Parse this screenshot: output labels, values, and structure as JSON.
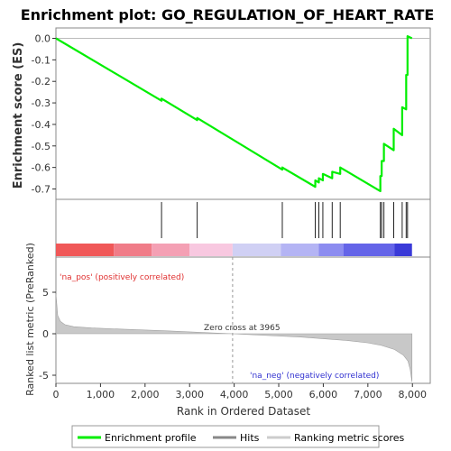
{
  "chart_data": {
    "type": "line",
    "title": "Enrichment plot: GO_REGULATION_OF_HEART_RATE",
    "es_panel": {
      "ylabel": "Enrichment score (ES)",
      "ylim": [
        -0.75,
        0.03
      ],
      "y_ticks": [
        0.0,
        -0.1,
        -0.2,
        -0.3,
        -0.4,
        -0.5,
        -0.6,
        -0.7
      ],
      "y_tick_labels": [
        "0.0",
        "-0.1",
        "-0.2",
        "-0.3",
        "-0.4",
        "-0.5",
        "-0.6",
        "-0.7"
      ],
      "series": [
        {
          "name": "Enrichment profile",
          "color": "#00ee00",
          "x": [
            0,
            2370,
            2370,
            3170,
            3170,
            5080,
            5080,
            5820,
            5820,
            5900,
            5900,
            5990,
            5990,
            6200,
            6200,
            6380,
            6380,
            7280,
            7280,
            7310,
            7310,
            7360,
            7360,
            7580,
            7580,
            7770,
            7770,
            7860,
            7860,
            7890,
            7890,
            7990
          ],
          "y": [
            0.0,
            -0.29,
            -0.28,
            -0.38,
            -0.37,
            -0.61,
            -0.6,
            -0.69,
            -0.66,
            -0.67,
            -0.65,
            -0.66,
            -0.63,
            -0.65,
            -0.62,
            -0.63,
            -0.6,
            -0.71,
            -0.64,
            -0.64,
            -0.57,
            -0.57,
            -0.49,
            -0.52,
            -0.42,
            -0.45,
            -0.32,
            -0.33,
            -0.17,
            -0.17,
            0.01,
            0.0
          ]
        }
      ]
    },
    "hits": {
      "positions": [
        2370,
        3170,
        5080,
        5820,
        5900,
        5990,
        6200,
        6380,
        7280,
        7310,
        7360,
        7580,
        7770,
        7860,
        7890
      ]
    },
    "rank_bar": {
      "colors": [
        "#f05858",
        "#f07c88",
        "#f4a0b4",
        "#f8c8e0",
        "#d0d0f4",
        "#b4b4f4",
        "#8c8cf0",
        "#6464e8",
        "#3a3ad8"
      ],
      "breaks": [
        0,
        1300,
        2150,
        3000,
        3965,
        5050,
        5900,
        6450,
        7600,
        7990
      ]
    },
    "metric_panel": {
      "ylabel": "Ranked list metric (PreRanked)",
      "ylim": [
        -6.5,
        8
      ],
      "y_ticks": [
        5,
        0,
        -5
      ],
      "y_tick_labels": [
        "5",
        "0",
        "-5"
      ],
      "label_pos": "'na_pos' (positively correlated)",
      "label_neg": "'na_neg' (negatively correlated)",
      "zero_cross_text": "Zero cross at 3965",
      "zero_cross": 3965,
      "profile_x": [
        0,
        40,
        100,
        200,
        400,
        800,
        1500,
        2500,
        3500,
        3965,
        4500,
        5500,
        6500,
        7000,
        7300,
        7600,
        7800,
        7900,
        7950,
        7990
      ],
      "profile_y": [
        4.8,
        2.2,
        1.5,
        1.1,
        0.85,
        0.7,
        0.55,
        0.35,
        0.1,
        0.0,
        -0.15,
        -0.4,
        -0.8,
        -1.1,
        -1.4,
        -1.9,
        -2.6,
        -3.3,
        -4.3,
        -5.8
      ]
    },
    "xlabel": "Rank in Ordered Dataset",
    "xlim": [
      0,
      8400
    ],
    "x_ticks": [
      0,
      1000,
      2000,
      3000,
      4000,
      5000,
      6000,
      7000,
      8000
    ],
    "x_tick_labels": [
      "0",
      "1,000",
      "2,000",
      "3,000",
      "4,000",
      "5,000",
      "6,000",
      "7,000",
      "8,000"
    ],
    "legend": {
      "placement": "bottom",
      "items": [
        {
          "label": "Enrichment profile",
          "color": "#00ee00"
        },
        {
          "label": "Hits",
          "color": "#888888"
        },
        {
          "label": "Ranking metric scores",
          "color": "#cccccc"
        }
      ]
    }
  }
}
